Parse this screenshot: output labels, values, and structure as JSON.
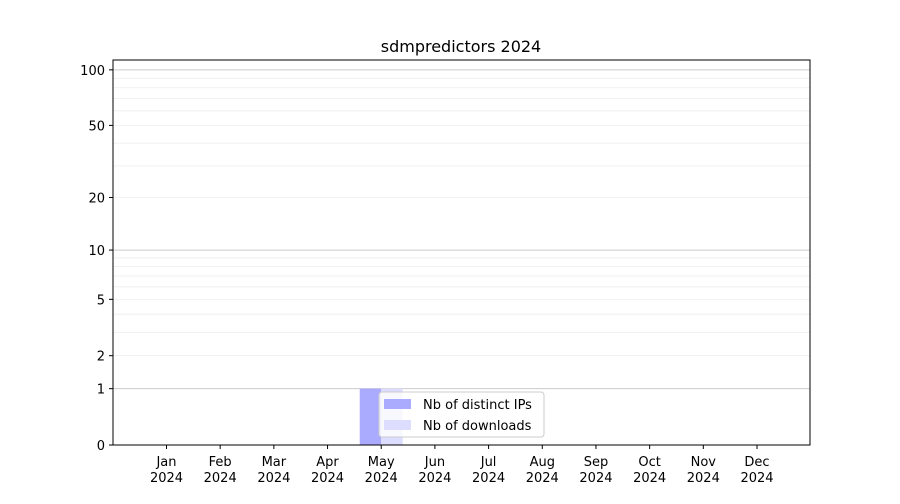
{
  "chart_data": {
    "type": "bar",
    "title": "sdmpredictors 2024",
    "xlabel": "",
    "ylabel": "",
    "y_scale": "symlog (log of 1 + value)",
    "ylim": [
      0,
      113
    ],
    "y_ticks": [
      0,
      1,
      2,
      5,
      10,
      20,
      50,
      100
    ],
    "y_tick_labels": [
      "0",
      "1",
      "2",
      "5",
      "10",
      "20",
      "50",
      "100"
    ],
    "grid": true,
    "legend_position": "bottom-center",
    "categories": [
      "Jan\n2024",
      "Feb\n2024",
      "Mar\n2024",
      "Apr\n2024",
      "May\n2024",
      "Jun\n2024",
      "Jul\n2024",
      "Aug\n2024",
      "Sep\n2024",
      "Oct\n2024",
      "Nov\n2024",
      "Dec\n2024"
    ],
    "series": [
      {
        "name": "Nb of distinct IPs",
        "color": "#aaaaff",
        "values": [
          0,
          0,
          0,
          0,
          1,
          0,
          0,
          0,
          0,
          0,
          0,
          0
        ]
      },
      {
        "name": "Nb of downloads",
        "color": "#ddddff",
        "values": [
          0,
          0,
          0,
          0,
          1,
          0,
          0,
          0,
          0,
          0,
          0,
          0
        ]
      }
    ]
  }
}
